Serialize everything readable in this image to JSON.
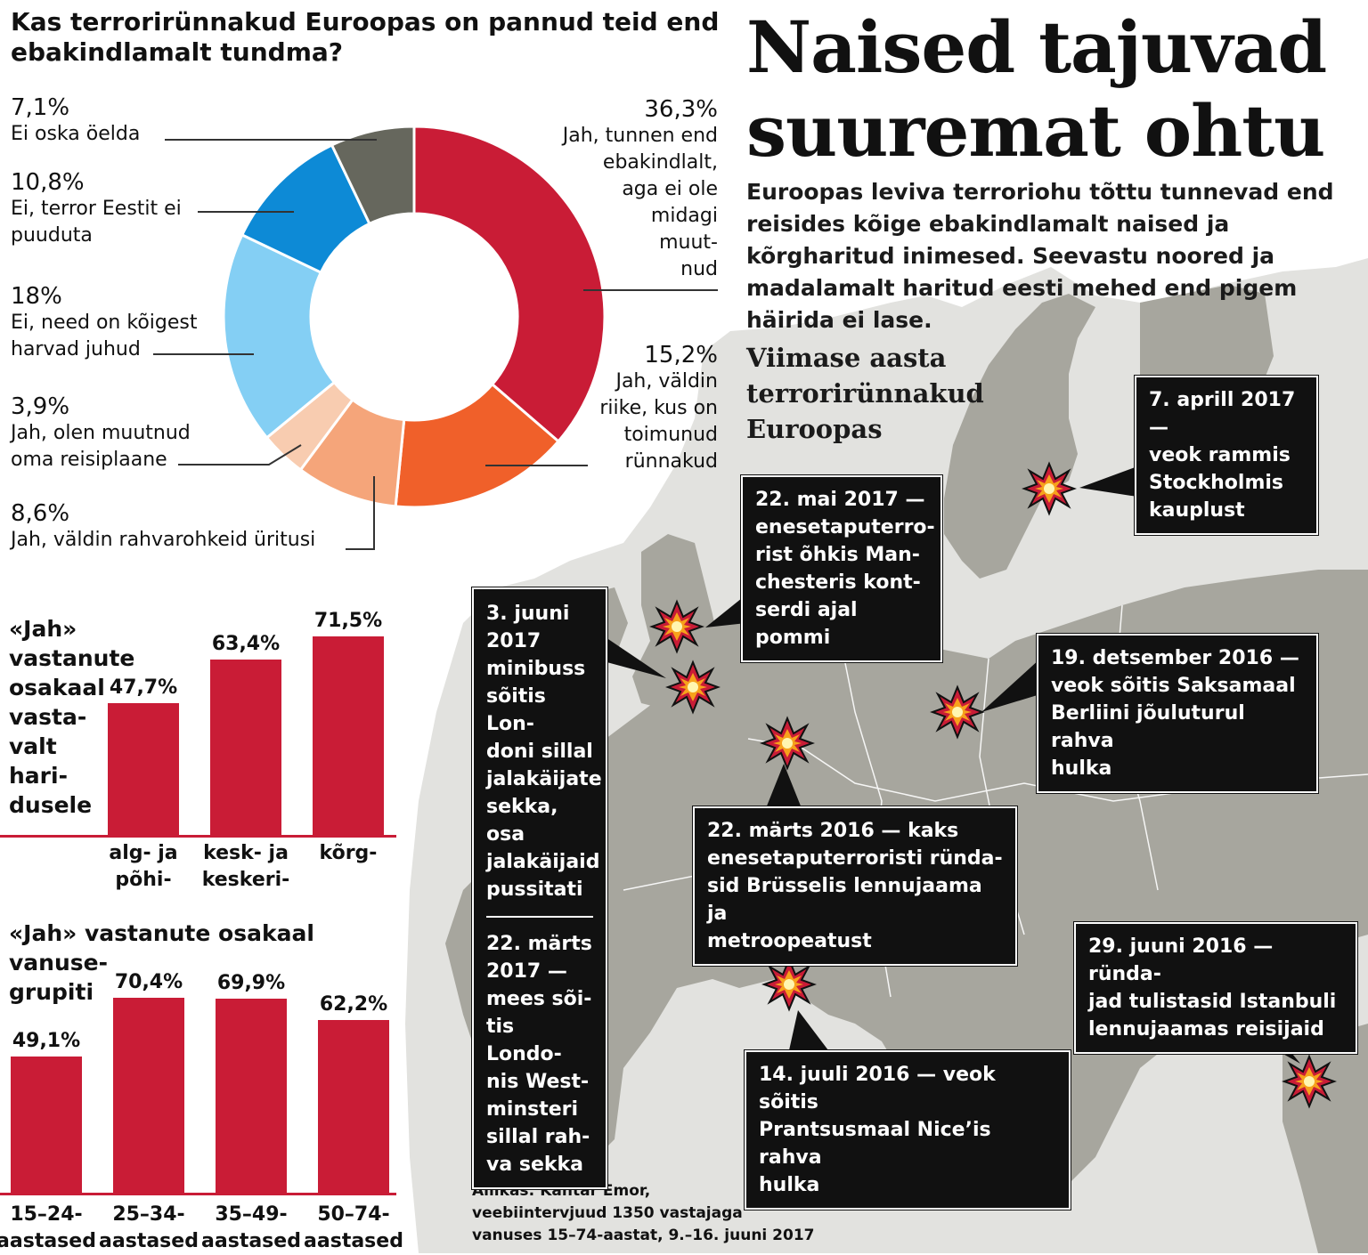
{
  "question": "Kas terrorirünnakud Euroopas on pannud teid end ebakindlamalt tundma?",
  "headline": [
    "Naised tajuvad",
    "suuremat ohtu"
  ],
  "lede": "Euroopas leviva terroriohu tõttu tunnevad end reisides kõige ebakindlamalt naised ja kõrghari­tud inimesed. Seevastu noored ja madalamalt haritud eesti mehed end pigem häirida ei lase.",
  "map_title": "Viimase aasta terrorirünnakud Euroopas",
  "colors": {
    "accent": "#c91c36",
    "orange": "#f0602a",
    "salmon": "#f5a57a",
    "peach": "#f8ccb0",
    "lightblue": "#84cff4",
    "blue": "#0d8ad6",
    "gray": "#66675d",
    "map_land": "#a7a69e",
    "map_sea": "#e2e2df"
  },
  "chart_data": [
    {
      "type": "pie",
      "title": "Kas terrorirünnakud Euroopas on pannud teid end ebakindlamalt tundma?",
      "slices": [
        {
          "label": "Jah, tunnen end ebakindlalt, aga ei ole midagi muutnud",
          "value": 36.3,
          "pct": "36,3%",
          "color": "#c91c36"
        },
        {
          "label": "Jah, väldin riike, kus on toimunud rünnakud",
          "value": 15.2,
          "pct": "15,2%",
          "color": "#f0602a"
        },
        {
          "label": "Jah, väldin rahvarohkeid üritusi",
          "value": 8.6,
          "pct": "8,6%",
          "color": "#f5a57a"
        },
        {
          "label": "Jah, olen muutnud oma reisiplaane",
          "value": 3.9,
          "pct": "3,9%",
          "color": "#f8ccb0"
        },
        {
          "label": "Ei, need on kõigest harvad juhud",
          "value": 18,
          "pct": "18%",
          "color": "#84cff4"
        },
        {
          "label": "Ei, terror Eestit ei puuduta",
          "value": 10.8,
          "pct": "10,8%",
          "color": "#0d8ad6"
        },
        {
          "label": "Ei oska öelda",
          "value": 7.1,
          "pct": "7,1%",
          "color": "#66675d"
        }
      ]
    },
    {
      "type": "bar",
      "title": "«Jah» vastanute osakaal vastavalt haridusele",
      "categories": [
        "alg- ja põhi-",
        "kesk- ja keskeri-",
        "kõrg-"
      ],
      "values": [
        47.7,
        63.4,
        71.5
      ],
      "value_labels": [
        "47,7%",
        "63,4%",
        "71,5%"
      ],
      "ylim": [
        0,
        80
      ]
    },
    {
      "type": "bar",
      "title": "«Jah» vastanute osakaal vanusegrupiti",
      "categories": [
        "15–24-aastased",
        "25–34-aastased",
        "35–49-aastased",
        "50–74-aastased"
      ],
      "values": [
        49.1,
        70.4,
        69.9,
        62.2
      ],
      "value_labels": [
        "49,1%",
        "70,4%",
        "69,9%",
        "62,2%"
      ],
      "ylim": [
        0,
        80
      ]
    }
  ],
  "pie_labels": {
    "s0": {
      "pct": "36,3%",
      "lines": [
        "Jah, tunnen end",
        "ebakindlalt,",
        "aga ei ole",
        "midagi",
        "muut-",
        "nud"
      ]
    },
    "s1": {
      "pct": "15,2%",
      "lines": [
        "Jah, väldin",
        "riike, kus on",
        "toimunud",
        "rünnakud"
      ]
    },
    "s2": {
      "pct": "8,6%",
      "lines": [
        "Jah, väldin rahvarohkeid üritusi"
      ]
    },
    "s3": {
      "pct": "3,9%",
      "lines": [
        "Jah, olen muutnud",
        "oma reisiplaane"
      ]
    },
    "s4": {
      "pct": "18%",
      "lines": [
        "Ei, need on kõigest",
        "harvad juhud"
      ]
    },
    "s5": {
      "pct": "10,8%",
      "lines": [
        "Ei, terror Eestit ei",
        "puuduta"
      ]
    },
    "s6": {
      "pct": "7,1%",
      "lines": [
        "Ei oska öelda"
      ]
    }
  },
  "edu_chart": {
    "title_lines": [
      "«Jah»",
      "vastanute",
      "osakaal",
      "vasta-",
      "valt",
      "hari-",
      "dusele"
    ],
    "cat_lines": [
      [
        "alg- ja",
        "põhi-"
      ],
      [
        "kesk- ja",
        "keskeri-"
      ],
      [
        "kõrg-"
      ]
    ]
  },
  "age_chart": {
    "title_lines": [
      "«Jah» vastanute osakaal vanuse-",
      "grupiti"
    ],
    "cat_lines": [
      [
        "15–24-",
        "aastased"
      ],
      [
        "25–34-",
        "aastased"
      ],
      [
        "35–49-",
        "aastased"
      ],
      [
        "50–74-",
        "aastased"
      ]
    ]
  },
  "events": {
    "stockholm": [
      "7. aprill 2017 —",
      "veok rammis",
      "Stockholmis",
      "kauplust"
    ],
    "manchester": [
      "22. mai 2017 —",
      "enesetaputerro-",
      "rist õhkis Man-",
      "chesteris kont-",
      "serdi ajal pommi"
    ],
    "london": [
      "3. juuni",
      "2017",
      "minibuss",
      "sõitis Lon-",
      "doni sillal",
      "jalakäijate",
      "sekka, osa",
      "jalakäijaid",
      "pussitati"
    ],
    "london2": [
      "22. märts",
      "2017 —",
      "mees sõi-",
      "tis Londo-",
      "nis West-",
      "minsteri",
      "sillal rah-",
      "va sekka"
    ],
    "berlin": [
      "19. detsember 2016 —",
      "veok sõitis Saksamaal",
      "Berliini jõuluturul rahva",
      "hulka"
    ],
    "brussels": [
      "22. märts 2016 — kaks",
      "enesetaputerroristi ründa-",
      "sid Brüsselis lennujaama ja",
      "metroopeatust"
    ],
    "istanbul": [
      "29. juuni 2016 — ründa-",
      "jad tulistasid Istanbuli",
      "lennujaamas reisijaid"
    ],
    "nice": [
      "14. juuli 2016 — veok sõitis",
      "Prantsusmaal Nice’is rahva",
      "hulka"
    ]
  },
  "source": [
    "Allikas: Kantar Emor,",
    "veebiintervjuud 1350 vastajaga",
    "vanuses 15–74-aastat, 9.–16. juuni 2017"
  ]
}
